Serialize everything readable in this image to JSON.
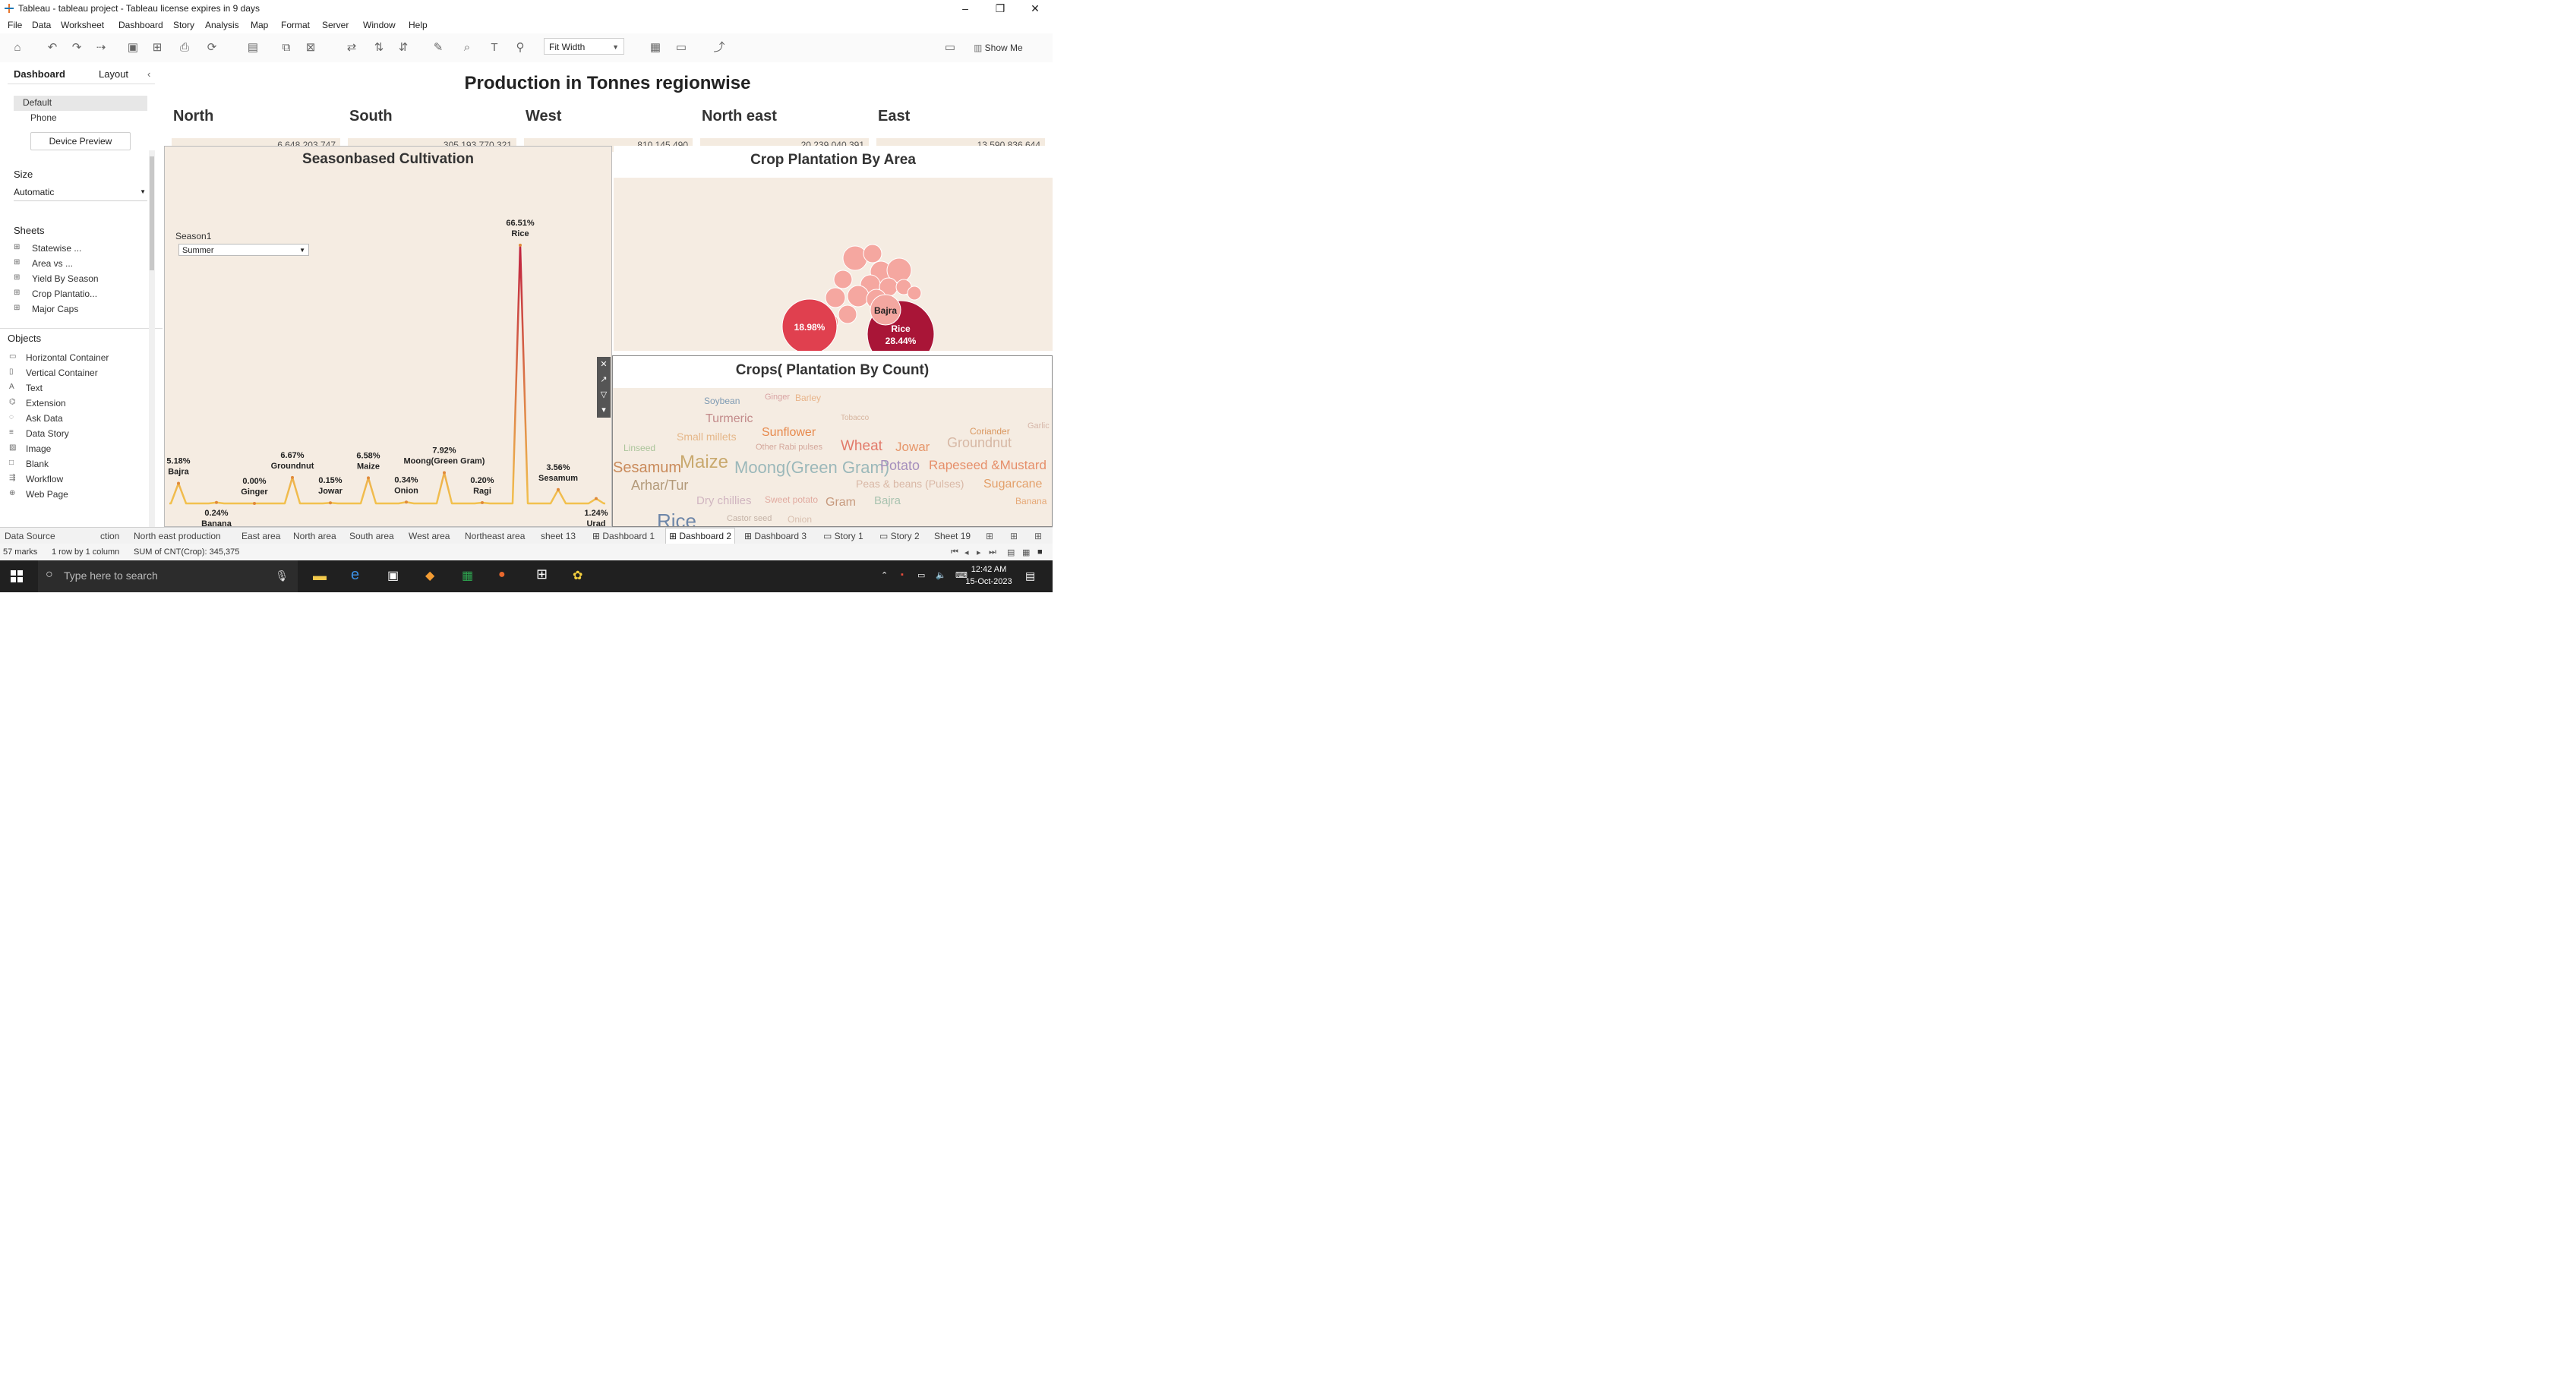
{
  "window": {
    "title": "Tableau - tableau project - Tableau license expires in 9 days",
    "controls": [
      "–",
      "❐",
      "✕"
    ]
  },
  "menu": [
    "File",
    "Data",
    "Worksheet",
    "Dashboard",
    "Story",
    "Analysis",
    "Map",
    "Format",
    "Server",
    "Window",
    "Help"
  ],
  "toolbar": {
    "fit": "Fit Width",
    "show_me": "Show Me"
  },
  "left_pane": {
    "tabs": [
      "Dashboard",
      "Layout"
    ],
    "devices": [
      "Default",
      "Phone"
    ],
    "device_preview": "Device Preview",
    "size_label": "Size",
    "size_value": "Automatic",
    "sheets_label": "Sheets",
    "sheets": [
      "Statewise ...",
      "Area vs ...",
      "Yield By Season",
      "Crop Plantatio...",
      "Major Caps"
    ],
    "objects_label": "Objects",
    "objects": [
      "Horizontal Container",
      "Vertical Container",
      "Text",
      "Extension",
      "Ask Data",
      "Data Story",
      "Image",
      "Blank",
      "Workflow",
      "Web Page"
    ]
  },
  "dashboard": {
    "title": "Production in Tonnes regionwise",
    "regions": [
      {
        "name": "North",
        "value": "6,648,203,747"
      },
      {
        "name": "South",
        "value": "305,193,770,321"
      },
      {
        "name": "West",
        "value": "810,145,490"
      },
      {
        "name": "North east",
        "value": "20,239,040,391"
      },
      {
        "name": "East",
        "value": "13,590,836,644"
      }
    ],
    "season_panel": {
      "title": "Seasonbased Cultivation",
      "filter_label": "Season1",
      "filter_value": "Summer"
    },
    "bubble_panel": {
      "title": "Crop Plantation By Area"
    },
    "word_panel": {
      "title": "Crops( Plantation By Count)",
      "words": [
        {
          "t": "Soybean",
          "c": "#7f9bb3"
        },
        {
          "t": "Ginger",
          "c": "#d9a3a3"
        },
        {
          "t": "Barley",
          "c": "#e8b48a"
        },
        {
          "t": "Turmeric",
          "c": "#c28a8a"
        },
        {
          "t": "Tobacco",
          "c": "#d7b6a0"
        },
        {
          "t": "Small millets",
          "c": "#e5b789"
        },
        {
          "t": "Sunflower",
          "c": "#e7894c"
        },
        {
          "t": "Coriander",
          "c": "#d9965e"
        },
        {
          "t": "Linseed",
          "c": "#aac49a"
        },
        {
          "t": "Other Rabi pulses",
          "c": "#d4a79b"
        },
        {
          "t": "Wheat",
          "c": "#e27a6a"
        },
        {
          "t": "Jowar",
          "c": "#e6966a"
        },
        {
          "t": "Groundnut",
          "c": "#d7b8a5"
        },
        {
          "t": "Maize",
          "c": "#c9a96e"
        },
        {
          "t": "Sesamum",
          "c": "#c98a5a"
        },
        {
          "t": "Moong(Green Gram)",
          "c": "#9bb8ba"
        },
        {
          "t": "Potato",
          "c": "#a58fbd"
        },
        {
          "t": "Rapeseed &Mustard",
          "c": "#e68f6a"
        },
        {
          "t": "Arhar/Tur",
          "c": "#b39a7a"
        },
        {
          "t": "Peas & beans (Pulses)",
          "c": "#d9b8a6"
        },
        {
          "t": "Sugarcane",
          "c": "#e3a06a"
        },
        {
          "t": "Dry chillies",
          "c": "#d0b5c0"
        },
        {
          "t": "Sweet potato",
          "c": "#e1aaa0"
        },
        {
          "t": "Gram",
          "c": "#c79a7e"
        },
        {
          "t": "Bajra",
          "c": "#a9c3b0"
        },
        {
          "t": "Banana",
          "c": "#e6a978"
        },
        {
          "t": "Rice",
          "c": "#6d86a8"
        },
        {
          "t": "Castor seed",
          "c": "#c4b2a6"
        },
        {
          "t": "Onion",
          "c": "#d9c0b0"
        },
        {
          "t": "Garlic",
          "c": "#d6b7a9"
        }
      ]
    }
  },
  "chart_data": [
    {
      "type": "line",
      "title": "Seasonbased Cultivation",
      "series": [
        {
          "values": [
            {
              "label": "Bajra",
              "value": 5.18
            },
            {
              "label": "Banana",
              "value": 0.24
            },
            {
              "label": "Ginger",
              "value": 0.0
            },
            {
              "label": "Groundnut",
              "value": 6.67
            },
            {
              "label": "Jowar",
              "value": 0.15
            },
            {
              "label": "Maize",
              "value": 6.58
            },
            {
              "label": "Onion",
              "value": 0.34
            },
            {
              "label": "Moong(Green Gram)",
              "value": 7.92
            },
            {
              "label": "Ragi",
              "value": 0.2
            },
            {
              "label": "Rice",
              "value": 66.51
            },
            {
              "label": "Sesamum",
              "value": 3.56
            },
            {
              "label": "Urad",
              "value": 1.24
            }
          ]
        }
      ],
      "value_labels": [
        "5.18%",
        "0.24%",
        "0.00%",
        "6.67%",
        "0.15%",
        "6.58%",
        "0.34%",
        "7.92%",
        "0.20%",
        "66.51%",
        "3.56%",
        "1.24%"
      ]
    },
    {
      "type": "bubble",
      "title": "Crop Plantation By Area",
      "bubbles": [
        {
          "label": "Rice",
          "value_label": "28.44%",
          "value": 28.44,
          "color": "#a91537"
        },
        {
          "label": "",
          "value_label": "18.98%",
          "value": 18.98,
          "color": "#e0404f"
        },
        {
          "label": "Bajra",
          "value_label": "",
          "value": 9.0,
          "color": "#f3a7a0"
        }
      ]
    }
  ],
  "sheet_tabs": [
    "Data Source",
    "ction",
    "North east production",
    "East area",
    "North area",
    "South area",
    "West area",
    "Northeast area",
    "sheet 13",
    "Dashboard 1",
    "Dashboard 2",
    "Dashboard 3",
    "Story 1",
    "Story 2",
    "Sheet 19"
  ],
  "active_tab": "Dashboard 2",
  "status": {
    "marks": "57 marks",
    "rows": "1 row by 1 column",
    "sum": "SUM of CNT(Crop): 345,375"
  },
  "taskbar": {
    "search_placeholder": "Type here to search",
    "time": "12:42 AM",
    "date": "15-Oct-2023"
  }
}
